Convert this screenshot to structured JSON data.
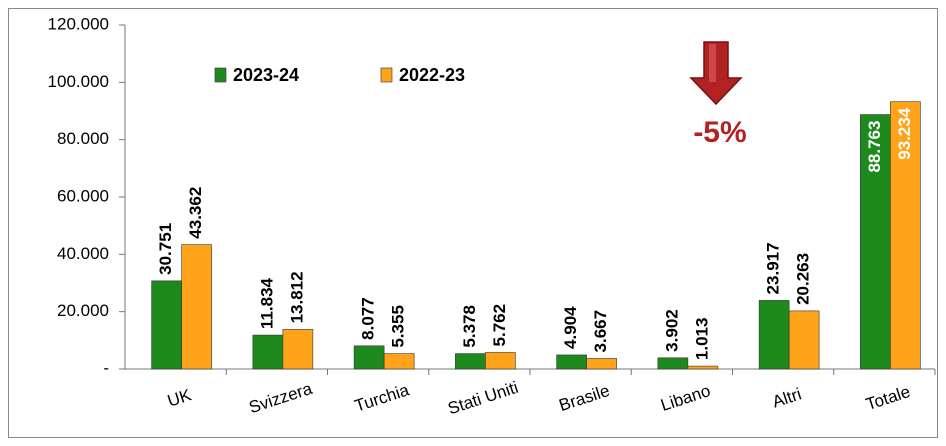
{
  "chart_data": {
    "type": "bar",
    "categories": [
      "UK",
      "Svizzera",
      "Turchia",
      "Stati Uniti",
      "Brasile",
      "Libano",
      "Altri",
      "Totale"
    ],
    "series": [
      {
        "name": "2023-24",
        "color": "#1e8a1e",
        "values": [
          30751,
          11834,
          8077,
          5378,
          4904,
          3902,
          23917,
          88763
        ],
        "value_labels": [
          "30.751",
          "11.834",
          "8.077",
          "5.378",
          "4.904",
          "3.902",
          "23.917",
          "88.763"
        ]
      },
      {
        "name": "2022-23",
        "color": "#ffa31a",
        "values": [
          43362,
          13812,
          5355,
          5762,
          3667,
          1013,
          20263,
          93234
        ],
        "value_labels": [
          "43.362",
          "13.812",
          "5.355",
          "5.762",
          "3.667",
          "1.013",
          "20.263",
          "93.234"
        ]
      }
    ],
    "ylim": [
      0,
      120000
    ],
    "yticks": [
      {
        "value": 0,
        "label": "-"
      },
      {
        "value": 20000,
        "label": "20.000"
      },
      {
        "value": 40000,
        "label": "40.000"
      },
      {
        "value": 60000,
        "label": "60.000"
      },
      {
        "value": 80000,
        "label": "80.000"
      },
      {
        "value": 100000,
        "label": "100.000"
      },
      {
        "value": 120000,
        "label": "120.000"
      }
    ],
    "annotation": "-5%",
    "legend": "top-left"
  }
}
